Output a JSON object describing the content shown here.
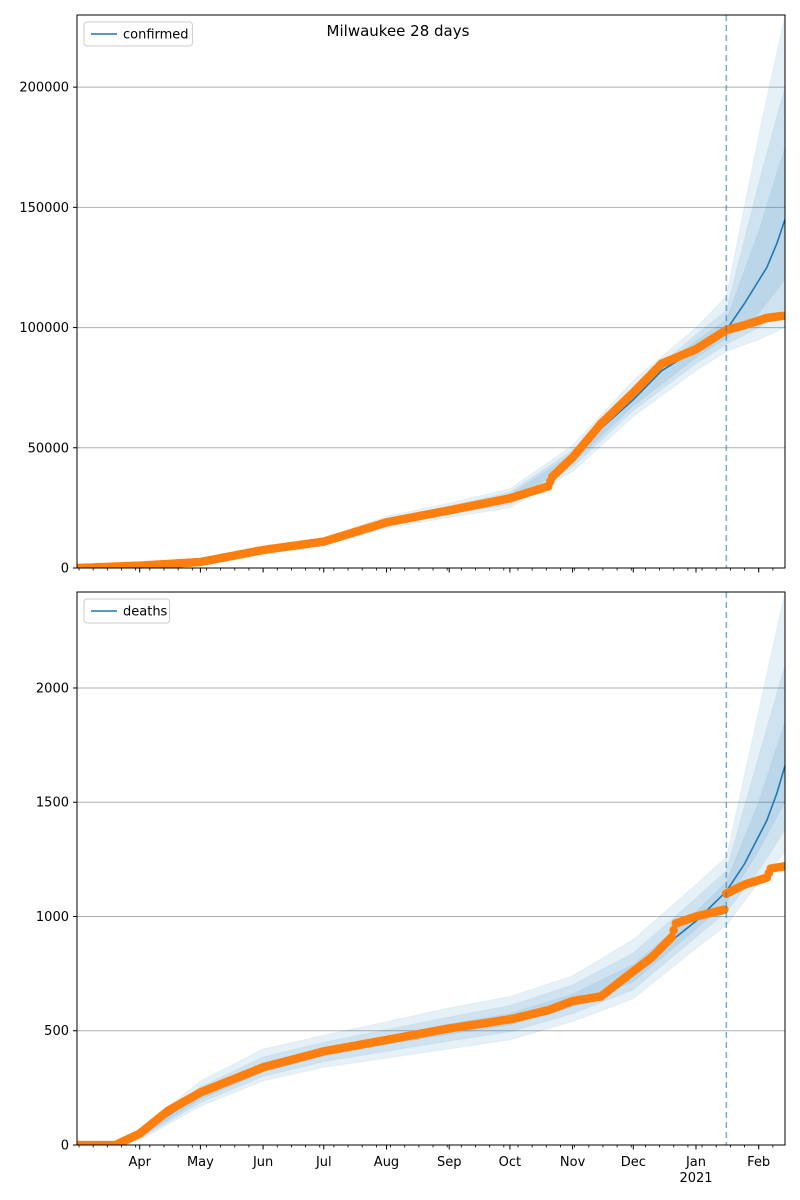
{
  "title": "Milwaukee 28 days",
  "x_axis": {
    "month_labels": [
      "Apr",
      "May",
      "Jun",
      "Jul",
      "Aug",
      "Sep",
      "Oct",
      "Nov",
      "Dec",
      "Jan",
      "Feb"
    ],
    "year_label": "2021"
  },
  "colors": {
    "model_line": "#1f77b4",
    "observed_points": "#ff7f0e",
    "band": "#1f77b4",
    "forecast_marker": "#1f77b4",
    "grid": "#b0b0b0"
  },
  "chart_data": [
    {
      "type": "line",
      "legend": [
        "confirmed"
      ],
      "legend_location": "upper-left",
      "grid": "horizontal",
      "x_range": [
        "2020-03-01",
        "2021-02-14"
      ],
      "ylim": [
        0,
        230000
      ],
      "yticks": [
        0,
        50000,
        100000,
        150000,
        200000
      ],
      "forecast_start": "2021-01-16",
      "series": [
        {
          "name": "confirmed",
          "kind": "model",
          "x": [
            "2020-03-01",
            "2020-04-01",
            "2020-05-01",
            "2020-06-01",
            "2020-07-01",
            "2020-08-01",
            "2020-09-01",
            "2020-10-01",
            "2020-10-20",
            "2020-11-01",
            "2020-11-15",
            "2020-12-01",
            "2020-12-15",
            "2021-01-01",
            "2021-01-16",
            "2021-01-25",
            "2021-02-05",
            "2021-02-10",
            "2021-02-14"
          ],
          "values": [
            0,
            1000,
            2500,
            7500,
            11000,
            19000,
            24000,
            29000,
            35000,
            45000,
            58000,
            70000,
            82000,
            91000,
            99000,
            110000,
            125000,
            135000,
            145000
          ]
        },
        {
          "kind": "observed",
          "x": [
            "2020-03-01",
            "2020-04-01",
            "2020-05-01",
            "2020-06-01",
            "2020-07-01",
            "2020-08-01",
            "2020-09-01",
            "2020-10-01",
            "2020-10-20",
            "2020-10-22",
            "2020-11-01",
            "2020-11-15",
            "2020-12-01",
            "2020-12-15",
            "2021-01-01",
            "2021-01-16",
            "2021-01-25",
            "2021-02-05",
            "2021-02-14"
          ],
          "values": [
            0,
            1000,
            2500,
            7500,
            11000,
            19000,
            24000,
            29000,
            34000,
            38000,
            46000,
            60000,
            73000,
            85000,
            91000,
            99000,
            101000,
            104000,
            105000
          ]
        }
      ],
      "bands": [
        {
          "x": [
            "2020-03-01",
            "2020-04-01",
            "2020-05-01",
            "2020-06-01",
            "2020-07-01",
            "2020-08-01",
            "2020-09-01",
            "2020-10-01",
            "2020-11-01",
            "2020-12-01",
            "2021-01-01",
            "2021-01-16",
            "2021-02-01",
            "2021-02-14"
          ],
          "lower": [
            0,
            800,
            2000,
            6500,
            9500,
            16500,
            21000,
            25000,
            40000,
            63000,
            82000,
            90000,
            95000,
            100000
          ],
          "upper": [
            0,
            1200,
            3000,
            8500,
            12500,
            21500,
            27000,
            33000,
            51000,
            78000,
            100000,
            113000,
            180000,
            230000
          ]
        },
        {
          "x": [
            "2020-03-01",
            "2020-04-01",
            "2020-05-01",
            "2020-06-01",
            "2020-07-01",
            "2020-08-01",
            "2020-09-01",
            "2020-10-01",
            "2020-11-01",
            "2020-12-01",
            "2021-01-01",
            "2021-01-16",
            "2021-02-01",
            "2021-02-14"
          ],
          "lower": [
            0,
            900,
            2200,
            6900,
            10100,
            17500,
            22300,
            26500,
            42000,
            65500,
            85000,
            93000,
            100000,
            108000
          ],
          "upper": [
            0,
            1100,
            2800,
            8100,
            11900,
            20500,
            25700,
            31500,
            49000,
            75000,
            97000,
            107000,
            160000,
            200000
          ]
        },
        {
          "x": [
            "2020-03-01",
            "2020-04-01",
            "2020-05-01",
            "2020-06-01",
            "2020-07-01",
            "2020-08-01",
            "2020-09-01",
            "2020-10-01",
            "2020-11-01",
            "2020-12-01",
            "2021-01-01",
            "2021-01-16",
            "2021-02-01",
            "2021-02-14"
          ],
          "lower": [
            0,
            950,
            2350,
            7200,
            10500,
            18200,
            23100,
            27500,
            43500,
            67500,
            87500,
            95500,
            106000,
            120000
          ],
          "upper": [
            0,
            1050,
            2650,
            7800,
            11500,
            19800,
            24900,
            30500,
            47500,
            73000,
            94500,
            103000,
            140000,
            175000
          ]
        }
      ]
    },
    {
      "type": "line",
      "legend": [
        "deaths"
      ],
      "legend_location": "upper-left",
      "grid": "horizontal",
      "x_range": [
        "2020-03-01",
        "2021-02-14"
      ],
      "ylim": [
        0,
        2420
      ],
      "yticks": [
        0,
        500,
        1000,
        1500,
        2000
      ],
      "forecast_start": "2021-01-16",
      "series": [
        {
          "name": "deaths",
          "kind": "model",
          "x": [
            "2020-03-01",
            "2020-03-20",
            "2020-04-01",
            "2020-04-15",
            "2020-05-01",
            "2020-06-01",
            "2020-07-01",
            "2020-08-01",
            "2020-09-01",
            "2020-10-01",
            "2020-10-20",
            "2020-11-01",
            "2020-11-15",
            "2020-12-01",
            "2020-12-15",
            "2021-01-01",
            "2021-01-16",
            "2021-01-25",
            "2021-02-05",
            "2021-02-10",
            "2021-02-14"
          ],
          "values": [
            0,
            0,
            40,
            130,
            220,
            340,
            410,
            460,
            510,
            550,
            590,
            630,
            660,
            750,
            860,
            980,
            1110,
            1230,
            1420,
            1540,
            1660
          ]
        },
        {
          "kind": "observed",
          "x": [
            "2020-03-01",
            "2020-03-20",
            "2020-04-01",
            "2020-04-15",
            "2020-05-01",
            "2020-06-01",
            "2020-07-01",
            "2020-08-01",
            "2020-09-01",
            "2020-10-01",
            "2020-10-20",
            "2020-11-01",
            "2020-11-15",
            "2020-12-01",
            "2020-12-10",
            "2020-12-20",
            "2020-12-22",
            "2021-01-01",
            "2021-01-15",
            "2021-01-16",
            "2021-01-25",
            "2021-02-05",
            "2021-02-07",
            "2021-02-14"
          ],
          "values": [
            0,
            0,
            50,
            150,
            230,
            340,
            410,
            460,
            510,
            550,
            590,
            630,
            650,
            760,
            820,
            910,
            970,
            1000,
            1030,
            1100,
            1140,
            1170,
            1210,
            1220
          ]
        }
      ],
      "bands": [
        {
          "x": [
            "2020-03-01",
            "2020-03-20",
            "2020-04-01",
            "2020-05-01",
            "2020-06-01",
            "2020-07-01",
            "2020-08-01",
            "2020-09-01",
            "2020-10-01",
            "2020-11-01",
            "2020-12-01",
            "2021-01-01",
            "2021-01-16",
            "2021-02-01",
            "2021-02-14"
          ],
          "lower": [
            0,
            0,
            20,
            170,
            280,
            340,
            380,
            420,
            460,
            540,
            640,
            860,
            960,
            1150,
            1280
          ],
          "upper": [
            0,
            0,
            70,
            280,
            420,
            480,
            540,
            600,
            650,
            740,
            900,
            1140,
            1260,
            1900,
            2420
          ]
        },
        {
          "x": [
            "2020-03-01",
            "2020-03-20",
            "2020-04-01",
            "2020-05-01",
            "2020-06-01",
            "2020-07-01",
            "2020-08-01",
            "2020-09-01",
            "2020-10-01",
            "2020-11-01",
            "2020-12-01",
            "2021-01-01",
            "2021-01-16",
            "2021-02-01",
            "2021-02-14"
          ],
          "lower": [
            0,
            0,
            28,
            185,
            300,
            365,
            410,
            455,
            495,
            575,
            680,
            910,
            1020,
            1200,
            1380
          ],
          "upper": [
            0,
            0,
            60,
            255,
            385,
            450,
            505,
            560,
            610,
            700,
            840,
            1080,
            1200,
            1700,
            2100
          ]
        },
        {
          "x": [
            "2020-03-01",
            "2020-03-20",
            "2020-04-01",
            "2020-05-01",
            "2020-06-01",
            "2020-07-01",
            "2020-08-01",
            "2020-09-01",
            "2020-10-01",
            "2020-11-01",
            "2020-12-01",
            "2021-01-01",
            "2021-01-16",
            "2021-02-01",
            "2021-02-14"
          ],
          "lower": [
            0,
            0,
            34,
            200,
            320,
            390,
            440,
            485,
            525,
            605,
            715,
            945,
            1060,
            1290,
            1500
          ],
          "upper": [
            0,
            0,
            50,
            240,
            360,
            425,
            475,
            530,
            575,
            660,
            790,
            1020,
            1150,
            1500,
            1850
          ]
        }
      ]
    }
  ]
}
